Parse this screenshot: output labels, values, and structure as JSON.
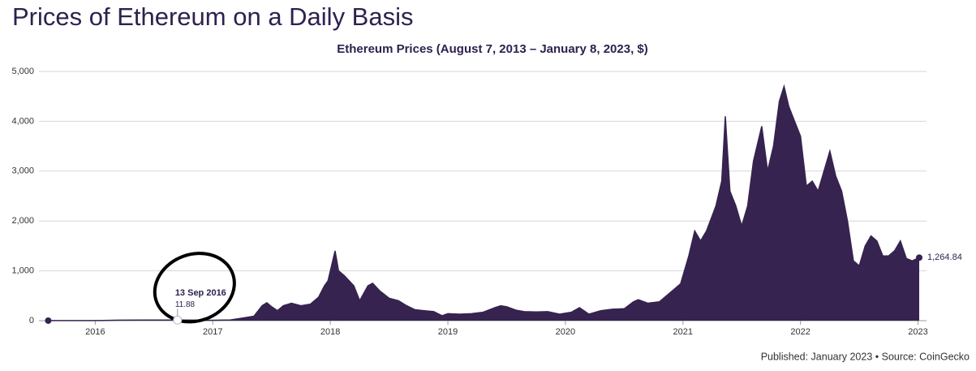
{
  "chart_data": {
    "type": "area",
    "title": "Prices of Ethereum on a Daily Basis",
    "subtitle": "Ethereum Prices (August 7, 2013 – January 8, 2023, $)",
    "footer": "Published: January 2023 • Source: CoinGecko",
    "color": "#36234f",
    "grid": true,
    "xlim": [
      2015.59,
      2023.01
    ],
    "xticks": [
      2016,
      2017,
      2018,
      2019,
      2020,
      2021,
      2022,
      2023
    ],
    "ylim": [
      0,
      5000
    ],
    "yticks": [
      0,
      {
        "value": 1000,
        "label": "1,000"
      },
      {
        "value": 2000,
        "label": "2,000"
      },
      {
        "value": 3000,
        "label": "3,000"
      },
      {
        "value": 4000,
        "label": "4,000"
      },
      {
        "value": 5000,
        "label": "5,000"
      }
    ],
    "x": [
      2015.6,
      2015.8,
      2016.0,
      2016.2,
      2016.4,
      2016.6,
      2016.7,
      2016.9,
      2017.0,
      2017.15,
      2017.25,
      2017.35,
      2017.42,
      2017.46,
      2017.5,
      2017.55,
      2017.6,
      2017.67,
      2017.75,
      2017.83,
      2017.9,
      2017.95,
      2017.98,
      2018.02,
      2018.04,
      2018.07,
      2018.12,
      2018.2,
      2018.25,
      2018.32,
      2018.36,
      2018.42,
      2018.5,
      2018.58,
      2018.65,
      2018.72,
      2018.8,
      2018.88,
      2018.95,
      2019.0,
      2019.1,
      2019.2,
      2019.3,
      2019.4,
      2019.45,
      2019.5,
      2019.58,
      2019.65,
      2019.75,
      2019.85,
      2019.95,
      2020.05,
      2020.12,
      2020.2,
      2020.3,
      2020.4,
      2020.5,
      2020.58,
      2020.62,
      2020.7,
      2020.8,
      2020.9,
      2020.98,
      2021.05,
      2021.1,
      2021.15,
      2021.2,
      2021.28,
      2021.33,
      2021.36,
      2021.4,
      2021.45,
      2021.5,
      2021.55,
      2021.6,
      2021.67,
      2021.72,
      2021.77,
      2021.82,
      2021.86,
      2021.9,
      2021.95,
      2022.0,
      2022.05,
      2022.1,
      2022.15,
      2022.2,
      2022.25,
      2022.3,
      2022.35,
      2022.4,
      2022.45,
      2022.5,
      2022.55,
      2022.6,
      2022.65,
      2022.7,
      2022.75,
      2022.8,
      2022.85,
      2022.9,
      2022.95,
      2023.01
    ],
    "series": [
      {
        "name": "Ethereum",
        "values": [
          1,
          1,
          1,
          10,
          12,
          11,
          12,
          9,
          8,
          15,
          50,
          90,
          300,
          360,
          280,
          200,
          300,
          350,
          300,
          330,
          470,
          700,
          800,
          1200,
          1400,
          1000,
          900,
          700,
          400,
          700,
          750,
          600,
          450,
          400,
          300,
          220,
          200,
          180,
          100,
          140,
          130,
          140,
          170,
          260,
          300,
          280,
          210,
          180,
          175,
          180,
          130,
          170,
          260,
          130,
          200,
          230,
          240,
          380,
          420,
          350,
          380,
          580,
          740,
          1300,
          1800,
          1600,
          1800,
          2300,
          2800,
          4100,
          2600,
          2300,
          1900,
          2300,
          3200,
          3900,
          3000,
          3500,
          4400,
          4700,
          4300,
          4000,
          3700,
          2700,
          2800,
          2600,
          3000,
          3400,
          2900,
          2600,
          2000,
          1200,
          1100,
          1500,
          1700,
          1600,
          1300,
          1300,
          1400,
          1600,
          1250,
          1200,
          1264.84
        ],
        "value_labels": [
          null,
          null,
          null,
          null,
          null,
          null,
          null,
          null,
          null,
          null,
          null,
          null,
          null,
          null,
          null,
          null,
          null,
          null,
          null,
          null,
          null,
          null,
          null,
          null,
          null,
          null,
          null,
          null,
          null,
          null,
          null,
          null,
          null,
          null,
          null,
          null,
          null,
          null,
          null,
          null,
          null,
          null,
          null,
          null,
          null,
          null,
          null,
          null,
          null,
          null,
          null,
          null,
          null,
          null,
          null,
          null,
          null,
          null,
          null,
          null,
          null,
          null,
          null,
          null,
          null,
          null,
          null,
          null,
          null,
          null,
          null,
          null,
          null,
          null,
          null,
          null,
          null,
          null,
          null,
          null,
          null,
          null,
          null,
          null,
          null,
          null,
          null,
          null,
          null,
          null,
          null,
          null,
          null,
          null,
          null,
          null,
          null,
          null,
          null,
          null,
          null,
          null,
          "1,264.84"
        ]
      }
    ],
    "annotations": [
      {
        "date": "13 Sep 2016",
        "x": 2016.7,
        "value": 11.88
      }
    ]
  }
}
